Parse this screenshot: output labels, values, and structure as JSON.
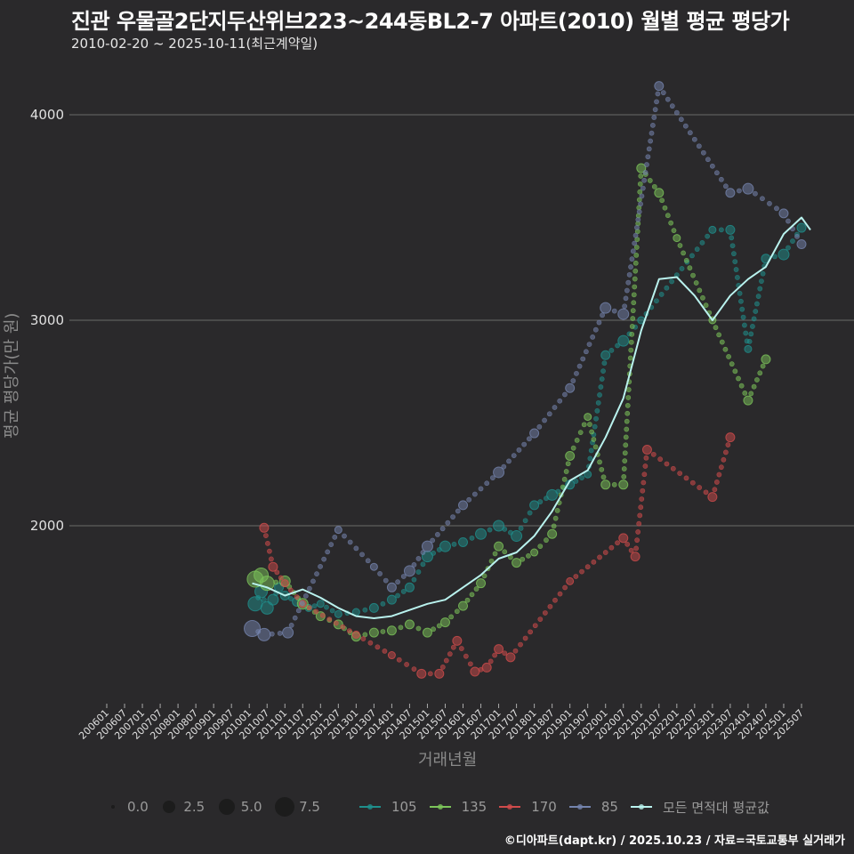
{
  "header": {
    "title": "진관 우물골2단지두산위브223~244동BL2-7 아파트(2010) 월별 평균 평당가",
    "subtitle": "2010-02-20 ~ 2025-10-11(최근계약일)"
  },
  "axes": {
    "ylabel": "평균 평당가(만 원)",
    "xlabel": "거래년월"
  },
  "footer": "©디아파트(dapt.kr) / 2025.10.23 / 자료=국토교통부 실거래가",
  "colors": {
    "background": "#2a292b",
    "grid": "#6a6a6a",
    "s105": "#1f8f8c",
    "s135": "#7cc45a",
    "s170": "#d04b4b",
    "s85": "#7483ad",
    "mean": "#b9f2ee"
  },
  "legend": {
    "size_title": "",
    "sizes": [
      {
        "label": "0.0",
        "r": 2
      },
      {
        "label": "2.5",
        "r": 7
      },
      {
        "label": "5.0",
        "r": 9
      },
      {
        "label": "7.5",
        "r": 11
      }
    ],
    "series": [
      {
        "label": "105",
        "key": "s105"
      },
      {
        "label": "135",
        "key": "s135"
      },
      {
        "label": "170",
        "key": "s170"
      },
      {
        "label": "85",
        "key": "s85"
      },
      {
        "label": "모든 면적대 평균값",
        "key": "mean"
      }
    ]
  },
  "chart_data": {
    "type": "scatter",
    "title": "진관 우물골2단지두산위브223~244동BL2-7 아파트(2010) 월별 평균 평당가",
    "subtitle": "2010-02-20 ~ 2025-10-11(최근계약일)",
    "xlabel": "거래년월",
    "ylabel": "평균 평당가(만 원)",
    "x_ticks": [
      "200601",
      "200607",
      "200701",
      "200707",
      "200801",
      "200807",
      "200901",
      "200907",
      "201001",
      "201007",
      "201101",
      "201107",
      "201201",
      "201207",
      "201301",
      "201307",
      "201401",
      "201407",
      "201501",
      "201507",
      "201601",
      "201607",
      "201701",
      "201707",
      "201801",
      "201807",
      "201901",
      "201907",
      "202001",
      "202007",
      "202101",
      "202107",
      "202201",
      "202207",
      "202301",
      "202307",
      "202401",
      "202407",
      "202501",
      "202507"
    ],
    "y_ticks": [
      2000,
      3000,
      4000
    ],
    "ylim": [
      1180,
      4250
    ],
    "grid": "horizontal",
    "legend_position": "bottom",
    "size_legend": [
      0.0,
      2.5,
      5.0,
      7.5
    ],
    "series": [
      {
        "name": "105",
        "color_key": "s105",
        "points": [
          [
            "201003",
            1620,
            6
          ],
          [
            "201005",
            1680,
            5
          ],
          [
            "201007",
            1600,
            5
          ],
          [
            "201009",
            1640,
            4
          ],
          [
            "201011",
            1700,
            3
          ],
          [
            "201101",
            1660,
            3
          ],
          [
            "201105",
            1630,
            3
          ],
          [
            "201109",
            1600,
            2
          ],
          [
            "201201",
            1620,
            2
          ],
          [
            "201207",
            1570,
            2
          ],
          [
            "201301",
            1580,
            2
          ],
          [
            "201307",
            1600,
            3
          ],
          [
            "201401",
            1640,
            3
          ],
          [
            "201407",
            1700,
            3
          ],
          [
            "201501",
            1850,
            4
          ],
          [
            "201507",
            1900,
            4
          ],
          [
            "201601",
            1920,
            3
          ],
          [
            "201607",
            1960,
            4
          ],
          [
            "201701",
            2000,
            4
          ],
          [
            "201707",
            1950,
            4
          ],
          [
            "201801",
            2100,
            3
          ],
          [
            "201807",
            2150,
            4
          ],
          [
            "201901",
            2200,
            3
          ],
          [
            "201907",
            2250,
            2
          ],
          [
            "202001",
            2830,
            3
          ],
          [
            "202007",
            2900,
            4
          ],
          [
            "202101",
            3000,
            2
          ],
          [
            "202301",
            3440,
            2
          ],
          [
            "202307",
            3440,
            3
          ],
          [
            "202401",
            2860,
            2
          ],
          [
            "202407",
            3300,
            3
          ],
          [
            "202501",
            3320,
            4
          ],
          [
            "202507",
            3450,
            3
          ]
        ]
      },
      {
        "name": "135",
        "color_key": "s135",
        "points": [
          [
            "201003",
            1740,
            7
          ],
          [
            "201005",
            1760,
            6
          ],
          [
            "201007",
            1720,
            6
          ],
          [
            "201101",
            1730,
            4
          ],
          [
            "201107",
            1620,
            4
          ],
          [
            "201201",
            1560,
            3
          ],
          [
            "201207",
            1520,
            3
          ],
          [
            "201301",
            1460,
            3
          ],
          [
            "201307",
            1480,
            3
          ],
          [
            "201401",
            1490,
            3
          ],
          [
            "201407",
            1520,
            3
          ],
          [
            "201501",
            1480,
            3
          ],
          [
            "201507",
            1530,
            3
          ],
          [
            "201601",
            1610,
            3
          ],
          [
            "201607",
            1720,
            3
          ],
          [
            "201701",
            1900,
            3
          ],
          [
            "201707",
            1820,
            3
          ],
          [
            "201801",
            1870,
            2
          ],
          [
            "201807",
            1960,
            3
          ],
          [
            "201901",
            2340,
            3
          ],
          [
            "201907",
            2530,
            2
          ],
          [
            "202001",
            2200,
            3
          ],
          [
            "202007",
            2200,
            3
          ],
          [
            "202101",
            3740,
            3
          ],
          [
            "202107",
            3620,
            3
          ],
          [
            "202201",
            3400,
            2
          ],
          [
            "202301",
            3000,
            2
          ],
          [
            "202401",
            2610,
            3
          ],
          [
            "202407",
            2810,
            3
          ]
        ]
      },
      {
        "name": "170",
        "color_key": "s170",
        "points": [
          [
            "201006",
            1990,
            3
          ],
          [
            "201009",
            1800,
            3
          ],
          [
            "201101",
            1720,
            2
          ],
          [
            "201107",
            1620,
            2
          ],
          [
            "201301",
            1470,
            2
          ],
          [
            "201401",
            1370,
            2
          ],
          [
            "201411",
            1280,
            3
          ],
          [
            "201505",
            1280,
            3
          ],
          [
            "201511",
            1440,
            3
          ],
          [
            "201605",
            1290,
            3
          ],
          [
            "201609",
            1310,
            3
          ],
          [
            "201701",
            1400,
            3
          ],
          [
            "201705",
            1360,
            3
          ],
          [
            "201901",
            1730,
            2
          ],
          [
            "202007",
            1940,
            3
          ],
          [
            "202011",
            1850,
            3
          ],
          [
            "202103",
            2370,
            3
          ],
          [
            "202301",
            2140,
            3
          ],
          [
            "202307",
            2430,
            3
          ]
        ]
      },
      {
        "name": "85",
        "color_key": "s85",
        "points": [
          [
            "201002",
            1500,
            7
          ],
          [
            "201006",
            1470,
            5
          ],
          [
            "201102",
            1480,
            4
          ],
          [
            "201207",
            1980,
            2
          ],
          [
            "201307",
            1800,
            2
          ],
          [
            "201401",
            1700,
            3
          ],
          [
            "201407",
            1780,
            4
          ],
          [
            "201501",
            1900,
            4
          ],
          [
            "201601",
            2100,
            3
          ],
          [
            "201701",
            2260,
            4
          ],
          [
            "201801",
            2450,
            3
          ],
          [
            "201901",
            2670,
            3
          ],
          [
            "202001",
            3060,
            4
          ],
          [
            "202007",
            3030,
            4
          ],
          [
            "202107",
            4140,
            3
          ],
          [
            "202307",
            3620,
            3
          ],
          [
            "202401",
            3640,
            4
          ],
          [
            "202501",
            3520,
            3
          ],
          [
            "202507",
            3370,
            3
          ]
        ]
      },
      {
        "name": "모든 면적대 평균값",
        "color_key": "mean",
        "line": [
          [
            "201002",
            1720
          ],
          [
            "201007",
            1700
          ],
          [
            "201101",
            1660
          ],
          [
            "201107",
            1690
          ],
          [
            "201201",
            1650
          ],
          [
            "201207",
            1600
          ],
          [
            "201301",
            1560
          ],
          [
            "201307",
            1550
          ],
          [
            "201401",
            1560
          ],
          [
            "201407",
            1590
          ],
          [
            "201501",
            1620
          ],
          [
            "201507",
            1640
          ],
          [
            "201601",
            1700
          ],
          [
            "201607",
            1760
          ],
          [
            "201701",
            1840
          ],
          [
            "201707",
            1870
          ],
          [
            "201801",
            1950
          ],
          [
            "201807",
            2070
          ],
          [
            "201901",
            2220
          ],
          [
            "201907",
            2270
          ],
          [
            "202001",
            2430
          ],
          [
            "202007",
            2620
          ],
          [
            "202101",
            2950
          ],
          [
            "202107",
            3200
          ],
          [
            "202201",
            3210
          ],
          [
            "202207",
            3120
          ],
          [
            "202301",
            3000
          ],
          [
            "202307",
            3120
          ],
          [
            "202401",
            3200
          ],
          [
            "202407",
            3260
          ],
          [
            "202501",
            3420
          ],
          [
            "202507",
            3500
          ],
          [
            "202510",
            3440
          ]
        ]
      }
    ]
  }
}
